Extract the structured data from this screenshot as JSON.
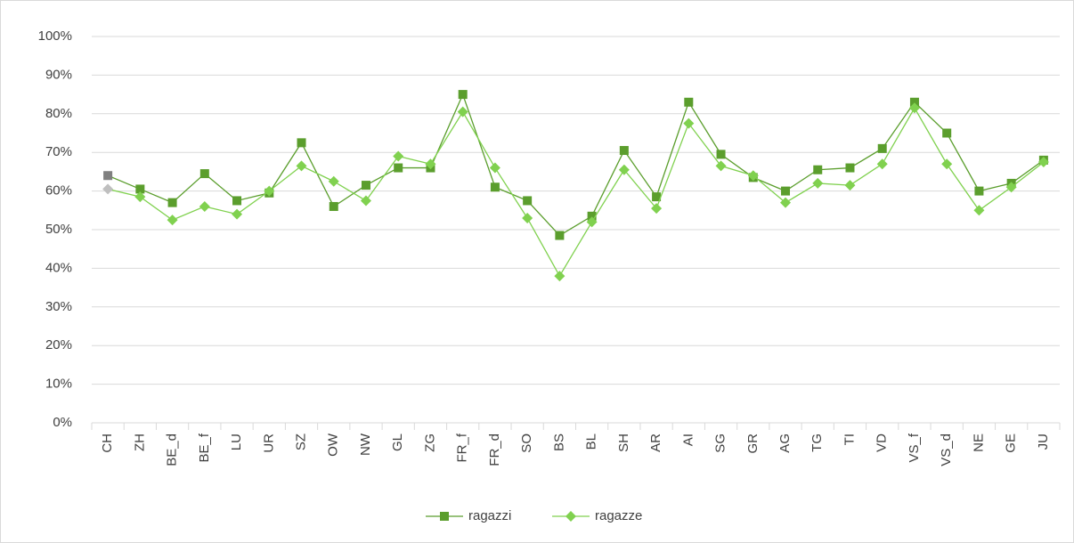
{
  "chart_data": {
    "type": "line",
    "categories": [
      "CH",
      "ZH",
      "BE_d",
      "BE_f",
      "LU",
      "UR",
      "SZ",
      "OW",
      "NW",
      "GL",
      "ZG",
      "FR_f",
      "FR_d",
      "SO",
      "BS",
      "BL",
      "SH",
      "AR",
      "AI",
      "SG",
      "GR",
      "AG",
      "TG",
      "TI",
      "VD",
      "VS_f",
      "VS_d",
      "NE",
      "GE",
      "JU"
    ],
    "series": [
      {
        "name": "ragazzi",
        "color": "#5b9e2d",
        "marker": "square",
        "highlight_color": "#808080",
        "values": [
          64,
          60.5,
          57,
          64.5,
          57.5,
          59.5,
          72.5,
          56,
          61.5,
          66,
          66,
          85,
          61,
          57.5,
          48.5,
          53.5,
          70.5,
          58.5,
          83,
          69.5,
          63.5,
          60,
          65.5,
          66,
          71,
          83,
          75,
          60,
          62,
          68
        ]
      },
      {
        "name": "ragazze",
        "color": "#80d14f",
        "marker": "diamond",
        "highlight_color": "#bfbfbf",
        "values": [
          60.5,
          58.5,
          52.5,
          56,
          54,
          60,
          66.5,
          62.5,
          57.5,
          69,
          67,
          80.5,
          66,
          53,
          38,
          52,
          65.5,
          55.5,
          77.5,
          66.5,
          64,
          57,
          62,
          61.5,
          67,
          81.5,
          67,
          55,
          61,
          67.5
        ]
      }
    ],
    "highlight_category": "CH",
    "ylim": [
      0,
      100
    ],
    "yticks": [
      {
        "value": 0,
        "label": "0%"
      },
      {
        "value": 10,
        "label": "10%"
      },
      {
        "value": 20,
        "label": "20%"
      },
      {
        "value": 30,
        "label": "30%"
      },
      {
        "value": 40,
        "label": "40%"
      },
      {
        "value": 50,
        "label": "50%"
      },
      {
        "value": 60,
        "label": "60%"
      },
      {
        "value": 70,
        "label": "70%"
      },
      {
        "value": 80,
        "label": "80%"
      },
      {
        "value": 90,
        "label": "90%"
      },
      {
        "value": 100,
        "label": "100%"
      }
    ],
    "grid": true,
    "legend": "bottom"
  }
}
